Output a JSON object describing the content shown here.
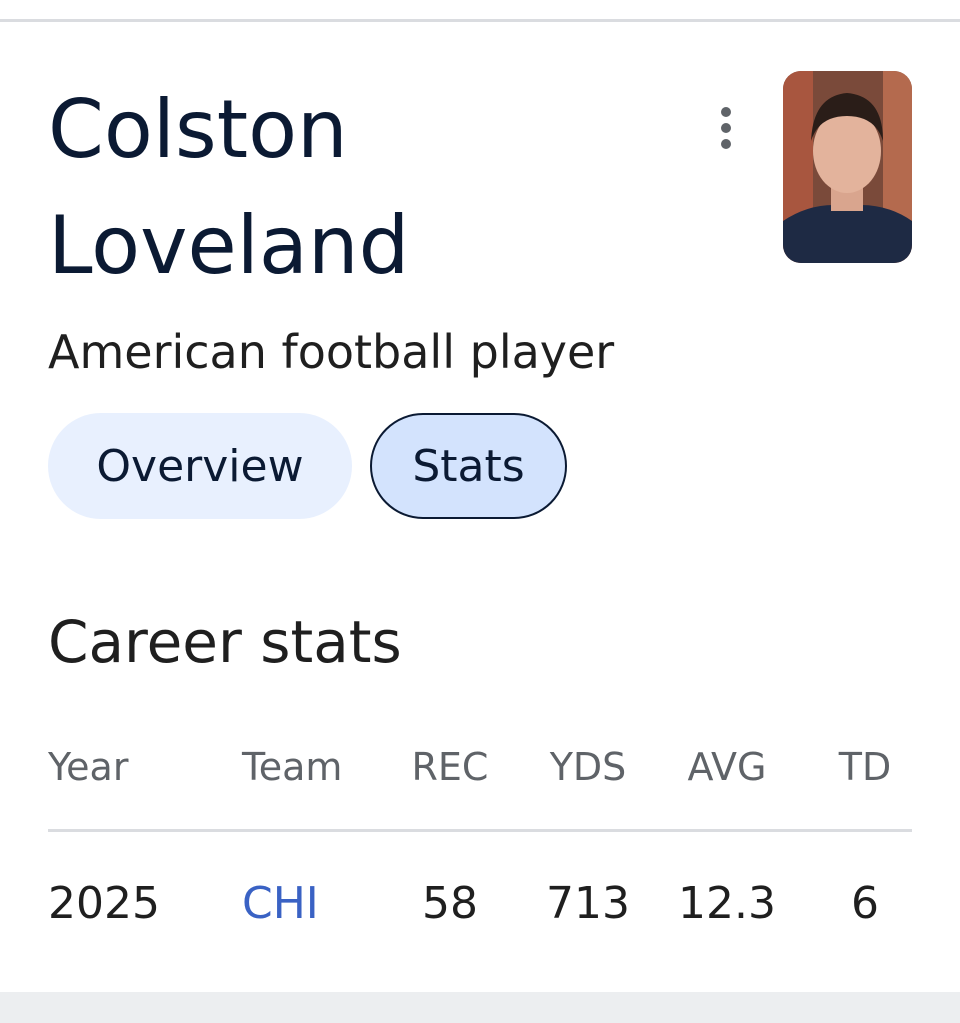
{
  "header": {
    "title": "Colston Loveland",
    "subtitle": "American football player"
  },
  "tabs": [
    "Overview",
    "Stats"
  ],
  "section": {
    "title": "Career stats"
  },
  "table": {
    "columns": [
      "Year",
      "Team",
      "REC",
      "YDS",
      "AVG",
      "TD"
    ],
    "rows": [
      [
        "2025",
        "CHI",
        "58",
        "713",
        "12.3",
        "6"
      ]
    ]
  }
}
